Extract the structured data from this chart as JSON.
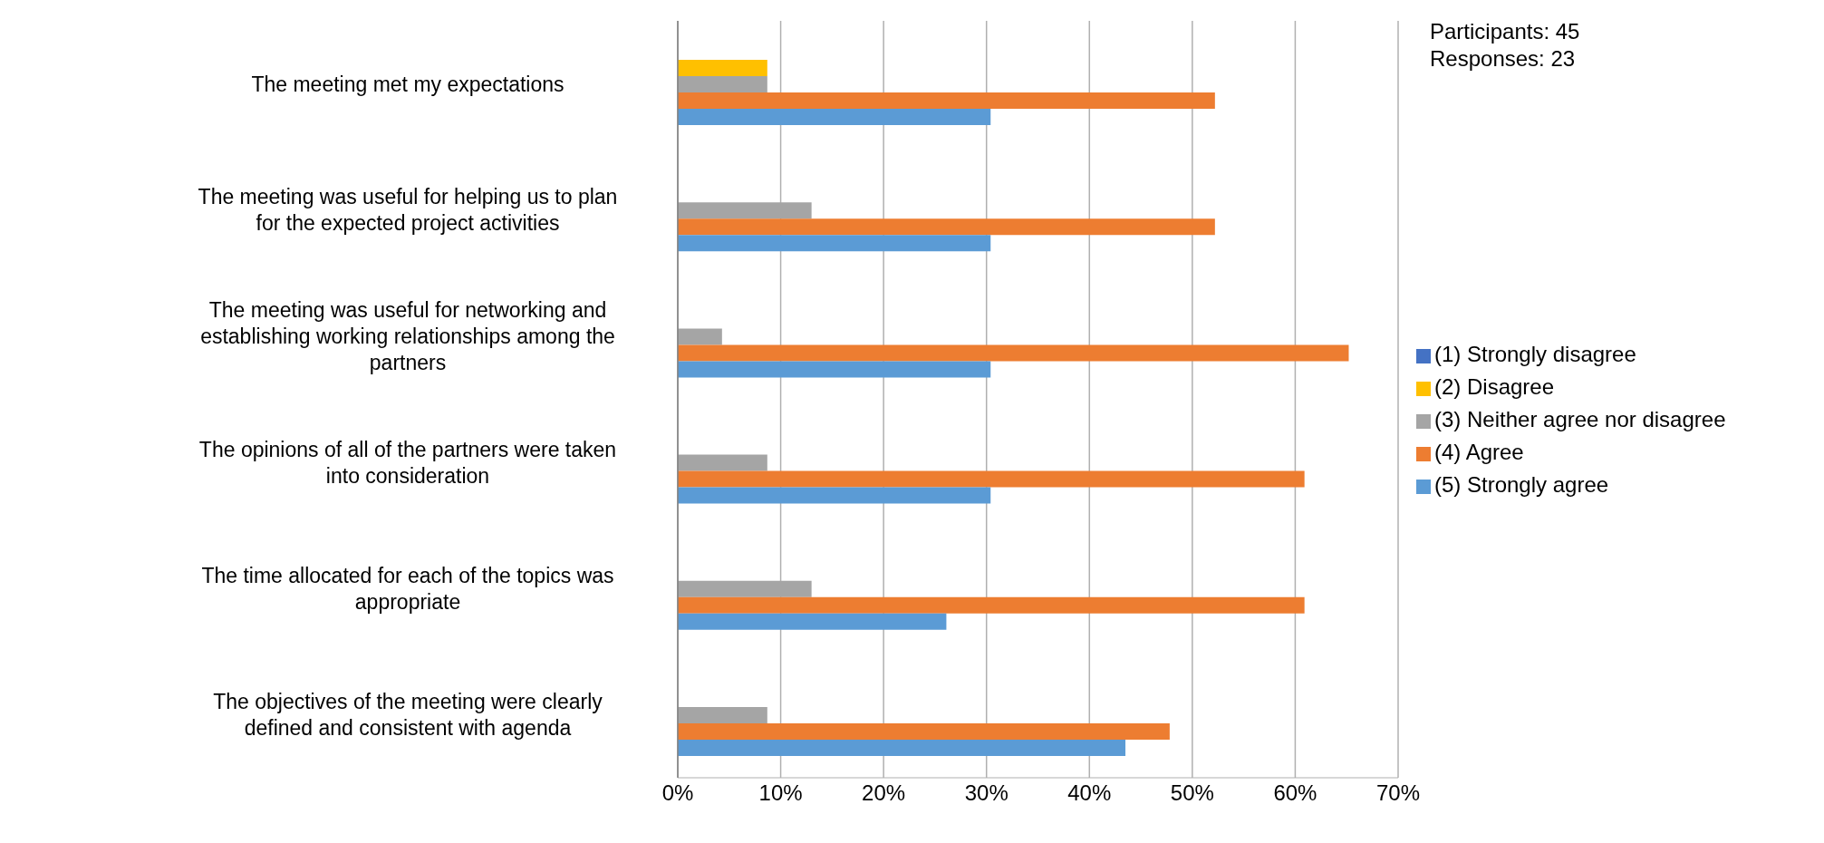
{
  "chart_data": {
    "type": "bar",
    "orientation": "horizontal",
    "categories": [
      "The meeting met my expectations",
      "The meeting was useful for helping us to plan for the expected project activities",
      "The meeting was useful for networking and establishing working relationships among the partners",
      "The opinions of all of the partners were taken into consideration",
      "The time allocated for each of the topics was appropriate",
      "The objectives of the meeting were clearly defined and consistent with agenda"
    ],
    "series": [
      {
        "name": "(1) Strongly disagree",
        "color": "#4472c4",
        "values": [
          0,
          0,
          0,
          0,
          0,
          0
        ]
      },
      {
        "name": "(2) Disagree",
        "color": "#ffc000",
        "values": [
          8.7,
          0,
          0,
          0,
          0,
          0
        ]
      },
      {
        "name": "(3) Neither agree nor disagree",
        "color": "#a5a5a5",
        "values": [
          8.7,
          13.0,
          4.3,
          8.7,
          13.0,
          8.7
        ]
      },
      {
        "name": "(4) Agree",
        "color": "#ed7d31",
        "values": [
          52.2,
          52.2,
          65.2,
          60.9,
          60.9,
          47.8
        ]
      },
      {
        "name": "(5) Strongly agree",
        "color": "#5b9bd5",
        "values": [
          30.4,
          30.4,
          30.4,
          30.4,
          26.1,
          43.5
        ]
      }
    ],
    "xlim": [
      0,
      70
    ],
    "xticks": [
      {
        "value": 0,
        "label": "0%"
      },
      {
        "value": 10,
        "label": "10%"
      },
      {
        "value": 20,
        "label": "20%"
      },
      {
        "value": 30,
        "label": "30%"
      },
      {
        "value": 40,
        "label": "40%"
      },
      {
        "value": 50,
        "label": "50%"
      },
      {
        "value": 60,
        "label": "60%"
      },
      {
        "value": 70,
        "label": "70%"
      }
    ],
    "grid": "x",
    "legend": "right",
    "annotations": [
      "Participants: 45",
      "Responses: 23"
    ]
  }
}
